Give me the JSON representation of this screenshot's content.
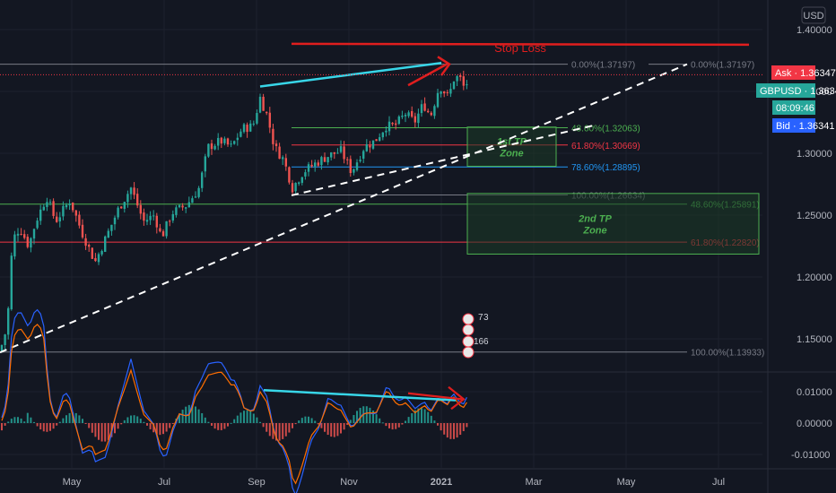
{
  "chart_data": {
    "type": "candlestick",
    "symbol": "GBPUSD",
    "currency_button": "USD",
    "x_labels": [
      "May",
      "Jul",
      "Sep",
      "Nov",
      "2021",
      "Mar",
      "May",
      "Jul"
    ],
    "price_ticks": [
      "1.40000",
      "1.35000",
      "1.30000",
      "1.25000",
      "1.20000",
      "1.15000"
    ],
    "price_ticks_values": [
      1.4,
      1.35,
      1.3,
      1.25,
      1.2,
      1.15
    ],
    "macd_ticks": [
      "0.01000",
      "0.00000",
      "-0.01000"
    ],
    "macd_ticks_values": [
      0.01,
      0.0,
      -0.01
    ],
    "price_range": [
      1.12,
      1.42
    ],
    "macd_range": [
      -0.013,
      0.014
    ],
    "ask_label": "Ask · 1.36347",
    "pair_label": "GBPUSD · 1.36341",
    "time_label": "08:09:46",
    "bid_label": "Bid · 1.36341",
    "ask_price": 1.36347,
    "last_price": 1.36341,
    "stop_loss_label": "Stop Loss",
    "stop_loss_price": 1.3885,
    "fib_top": [
      {
        "label": "0.00%(1.37197)",
        "price": 1.37197,
        "color": "#787b86"
      },
      {
        "label": "48.60%(1.32063)",
        "price": 1.32063,
        "color": "#4caf50"
      },
      {
        "label": "61.80%(1.30669)",
        "price": 1.30669,
        "color": "#f23645"
      },
      {
        "label": "78.60%(1.28895)",
        "price": 1.28895,
        "color": "#2196f3"
      },
      {
        "label": "100.00%(1.26634)",
        "price": 1.26634,
        "color": "#787b86"
      }
    ],
    "fib_right": [
      {
        "label": "0.00%(1.37197)",
        "price": 1.37197,
        "color": "#787b86"
      },
      {
        "label": "48.60%(1.25891)",
        "price": 1.25891,
        "color": "#4caf50"
      },
      {
        "label": "61.80%(1.22820)",
        "price": 1.2282,
        "color": "#f23645"
      },
      {
        "label": "100.00%(1.13933)",
        "price": 1.13933,
        "color": "#787b86"
      }
    ],
    "zones": [
      {
        "label_line1": "1st TP",
        "label_line2": "Zone",
        "price_top": 1.3212,
        "price_bottom": 1.2895
      },
      {
        "label_line1": "2nd TP",
        "label_line2": "Zone",
        "price_top": 1.2675,
        "price_bottom": 1.2185
      }
    ],
    "event_badges": [
      "7",
      "3",
      "16",
      "6"
    ],
    "colors": {
      "up": "#26a69a",
      "down": "#ef5350",
      "trend_cyan": "#38d6e8",
      "stop": "#e01e1e",
      "macd_line": "#2962ff",
      "signal_line": "#ff6d00",
      "dashed": "#ffffff",
      "zone_fill": "#1b3a27",
      "zone_border": "#4caf50",
      "zone_text": "#4caf50"
    }
  }
}
